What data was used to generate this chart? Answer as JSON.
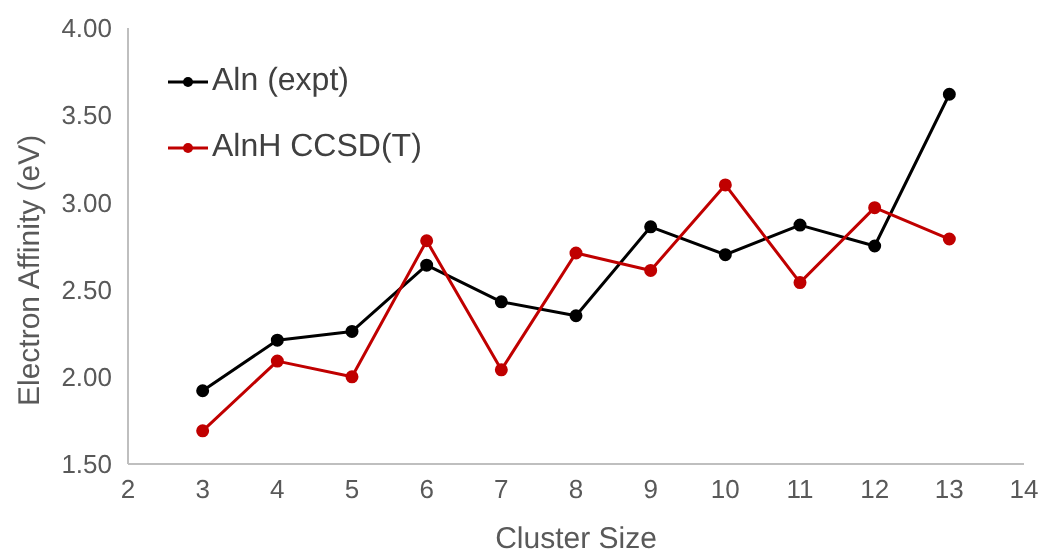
{
  "chart_data": {
    "type": "line",
    "xlabel": "Cluster Size",
    "ylabel": "Electron Affinity (eV)",
    "x": [
      3,
      4,
      5,
      6,
      7,
      8,
      9,
      10,
      11,
      12,
      13
    ],
    "series": [
      {
        "name": "Aln (expt)",
        "color": "#000000",
        "values": [
          1.92,
          2.21,
          2.26,
          2.64,
          2.43,
          2.35,
          2.86,
          2.7,
          2.87,
          2.75,
          3.62
        ]
      },
      {
        "name": "AlnH CCSD(T)",
        "color": "#c00000",
        "values": [
          1.69,
          2.09,
          2.0,
          2.78,
          2.04,
          2.71,
          2.61,
          3.1,
          2.54,
          2.97,
          2.79
        ]
      }
    ],
    "xlim": [
      2,
      14
    ],
    "xticks": [
      2,
      3,
      4,
      5,
      6,
      7,
      8,
      9,
      10,
      11,
      12,
      13,
      14
    ],
    "ylim": [
      1.5,
      4
    ],
    "yticks": [
      {
        "value": 1.5,
        "label": "1.50"
      },
      {
        "value": 2,
        "label": "2.00"
      },
      {
        "value": 2.5,
        "label": "2.50"
      },
      {
        "value": 3,
        "label": "3.00"
      },
      {
        "value": 3.5,
        "label": "3.50"
      },
      {
        "value": 4,
        "label": "4.00"
      }
    ],
    "grid": false,
    "legend": "top left",
    "marker": "circle",
    "line_style": "solid"
  }
}
